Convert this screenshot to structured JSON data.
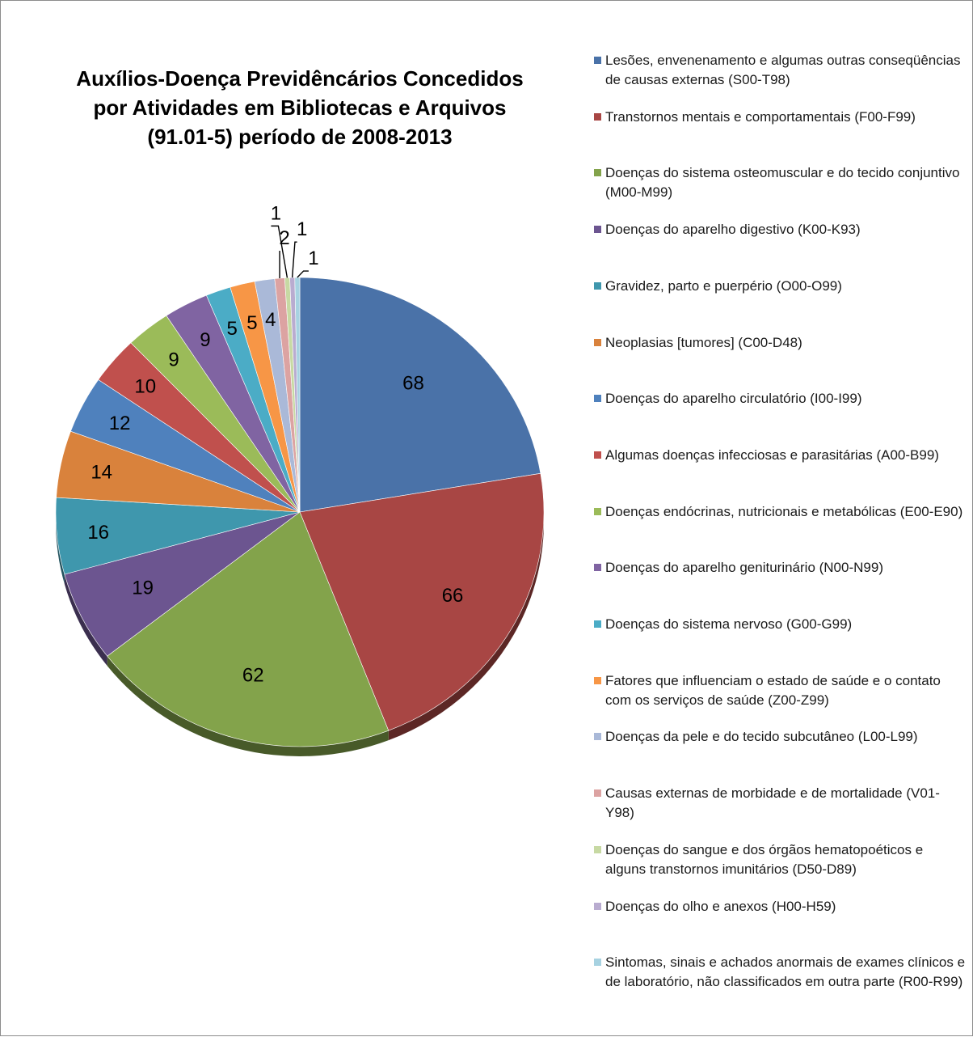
{
  "chart_data": {
    "type": "pie",
    "title_lines": [
      "Auxílios-Doença Previdêncários Concedidos",
      "por Atividades em Bibliotecas e Arquivos",
      "(91.01-5) período de 2008-2013"
    ],
    "categories": [
      "Lesões, envenenamento e algumas outras conseqüências de causas externas     (S00-T98)",
      "Transtornos mentais e comportamentais (F00-F99)",
      "Doenças do sistema osteomuscular e do tecido conjuntivo (M00-M99)",
      "Doenças do aparelho digestivo (K00-K93)",
      "Gravidez, parto e puerpério (O00-O99)",
      "Neoplasias [tumores] (C00-D48)",
      "Doenças do aparelho circulatório (I00-I99)",
      "Algumas doenças infecciosas e parasitárias (A00-B99)",
      "Doenças endócrinas, nutricionais e metabólicas (E00-E90)",
      "Doenças do aparelho geniturinário (N00-N99)",
      "Doenças do sistema nervoso (G00-G99)",
      "Fatores que influenciam o estado de saúde e o contato com os serviços de saúde (Z00-Z99)",
      "Doenças da pele e do tecido subcutâneo (L00-L99)",
      "Causas externas de morbidade e de mortalidade (V01-Y98)",
      "Doenças do sangue e dos órgãos hematopoéticos e alguns transtornos imunitários (D50-D89)",
      "Doenças do olho e anexos (H00-H59)",
      "Sintomas, sinais e achados anormais de exames clínicos e de laboratório, não classificados em outra parte (R00-R99)"
    ],
    "values": [
      68,
      66,
      62,
      19,
      16,
      14,
      12,
      10,
      9,
      9,
      5,
      5,
      4,
      2,
      1,
      1,
      1
    ],
    "colors": [
      "#4a72a8",
      "#a84644",
      "#83a34b",
      "#6c5590",
      "#3f97ad",
      "#d9823c",
      "#4f81bd",
      "#c0504d",
      "#9bbb59",
      "#8064a2",
      "#4bacc6",
      "#f79646",
      "#aab9d8",
      "#dca3a2",
      "#c7d9a3",
      "#b9acd0",
      "#a7d2e1"
    ],
    "legend_position": "right"
  }
}
